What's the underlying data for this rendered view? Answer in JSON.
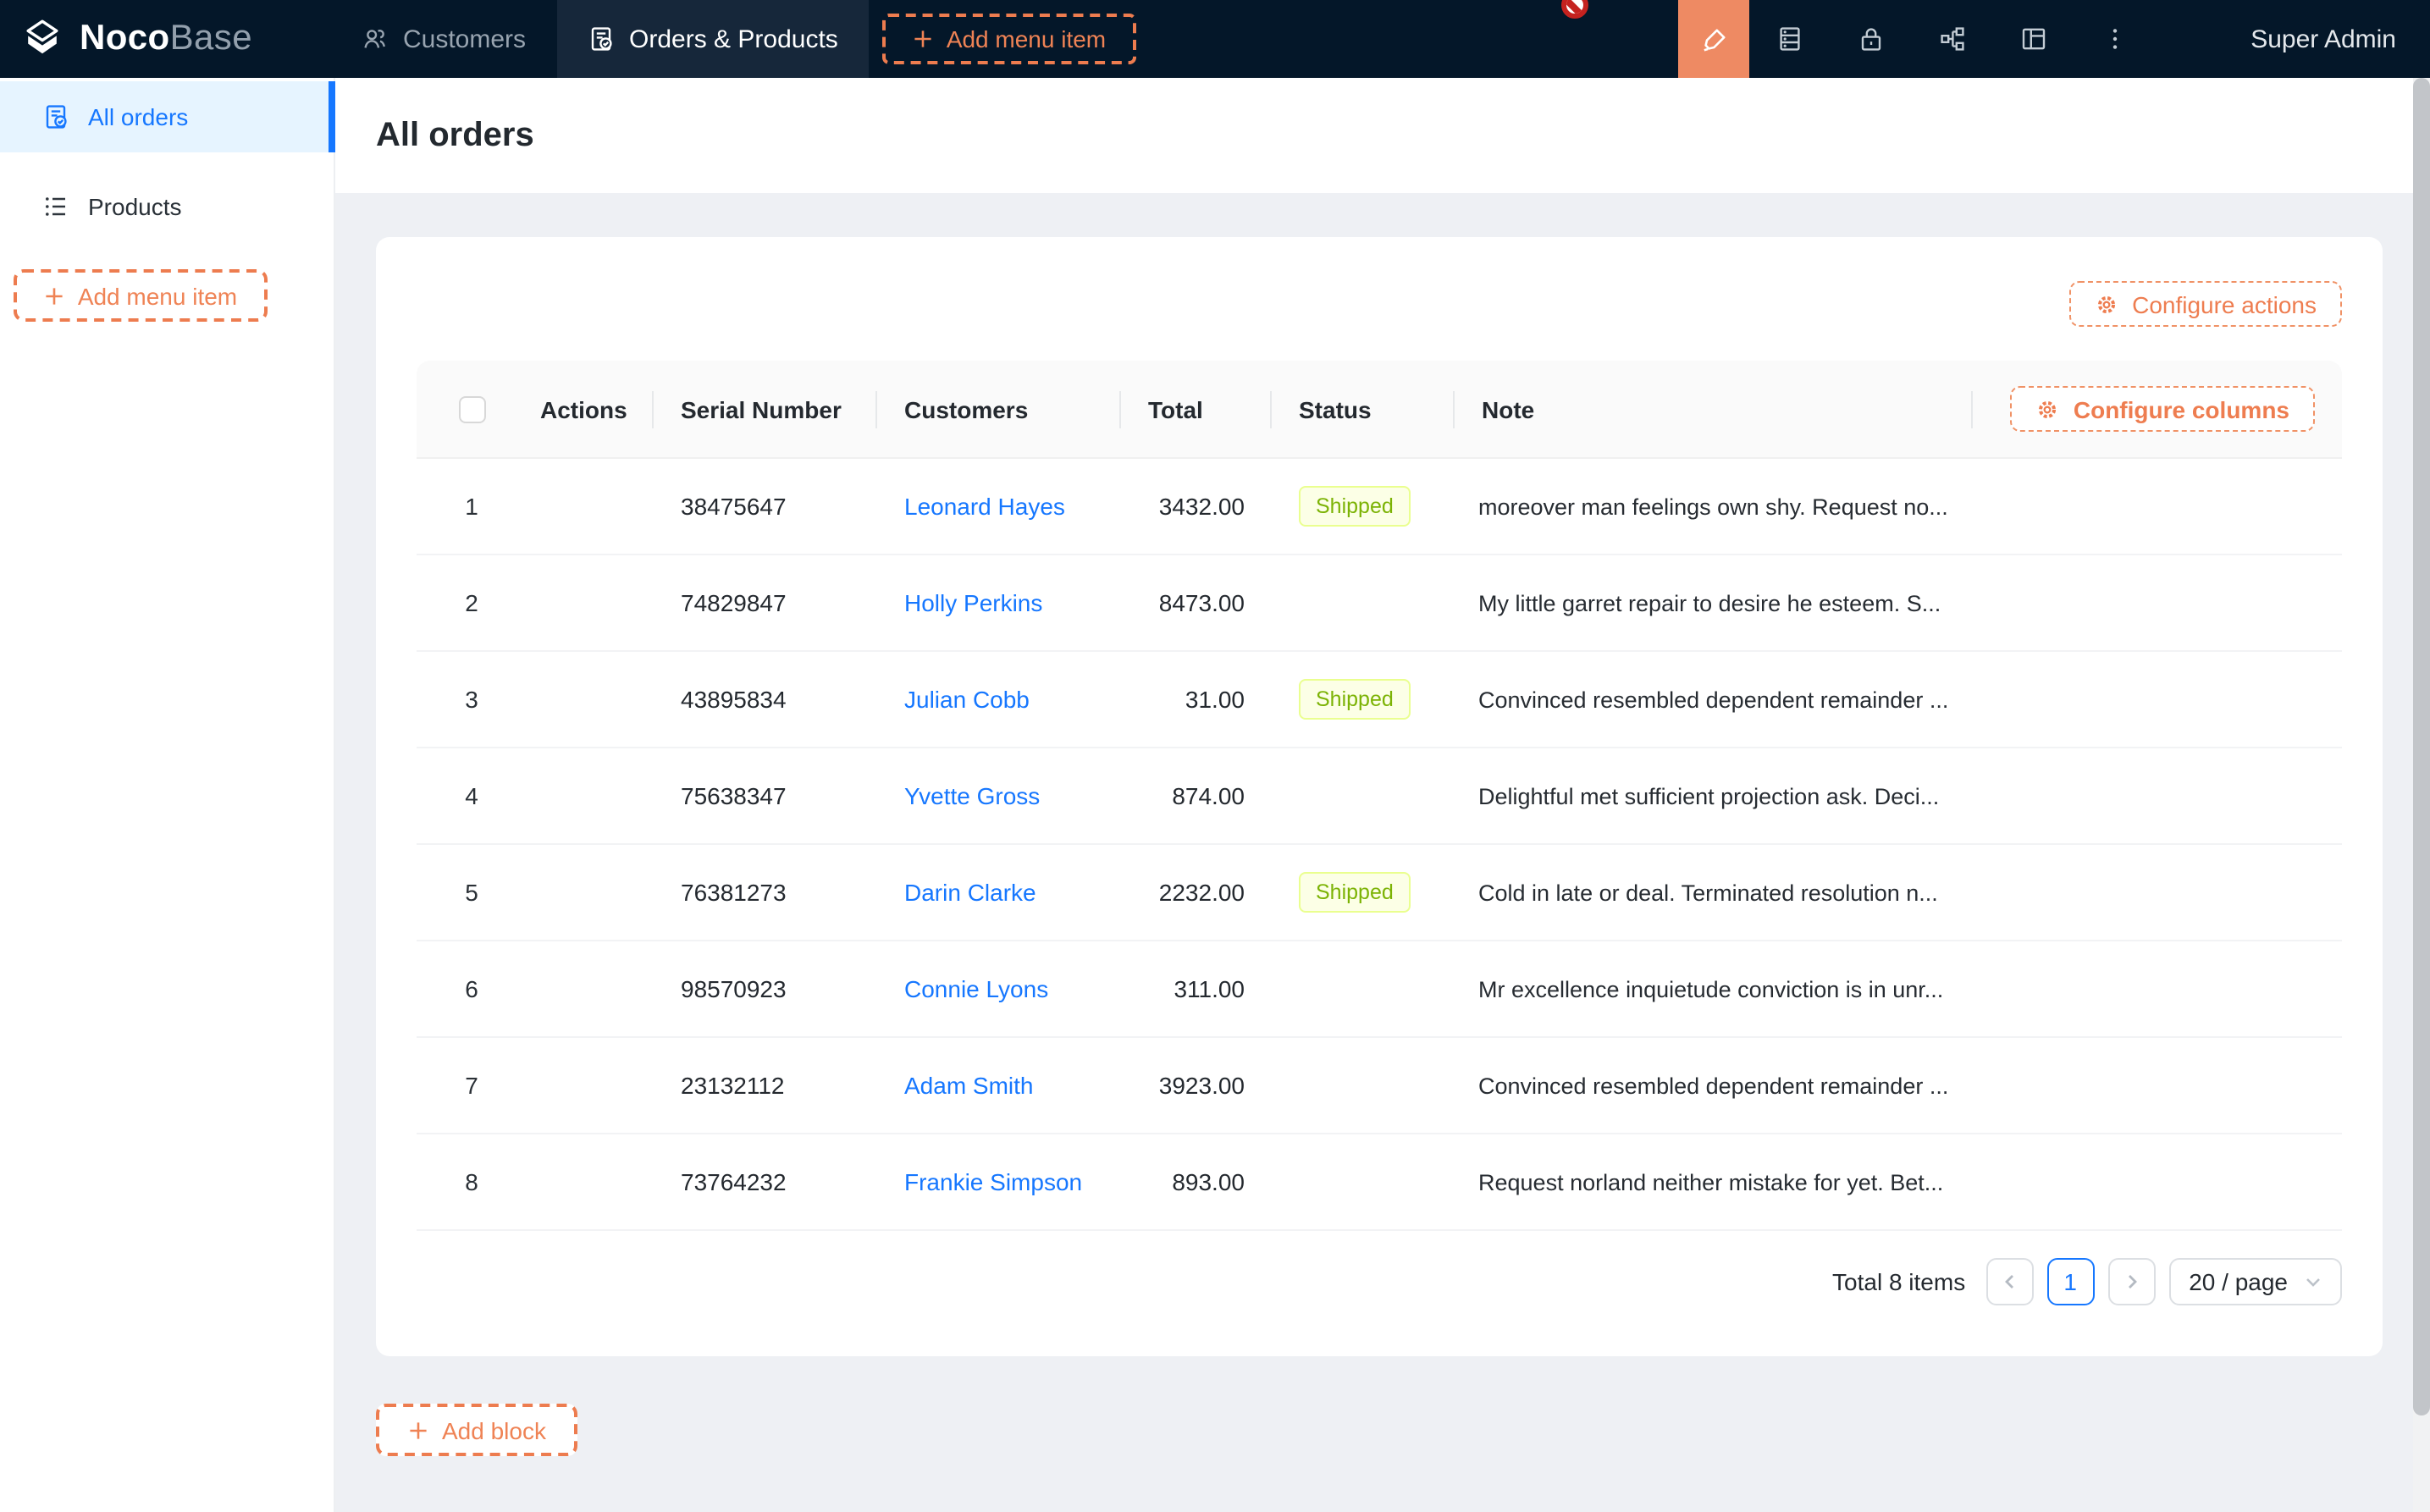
{
  "navbar": {
    "logo": {
      "bold": "Noco",
      "light": "Base"
    },
    "tabs": [
      {
        "label": "Customers",
        "icon": "team-icon",
        "active": false
      },
      {
        "label": "Orders & Products",
        "icon": "file-done-icon",
        "active": true
      }
    ],
    "add_menu_item_label": "Add menu item",
    "right_icons": [
      "highlighter-icon",
      "database-icon",
      "lock-icon",
      "apartment-icon",
      "layout-icon",
      "ellipsis-icon"
    ],
    "user": "Super Admin"
  },
  "sidebar": {
    "items": [
      {
        "label": "All orders",
        "icon": "file-done-icon",
        "active": true
      },
      {
        "label": "Products",
        "icon": "list-icon",
        "active": false
      }
    ],
    "add_menu_item_label": "Add menu item"
  },
  "page": {
    "title": "All orders"
  },
  "table": {
    "configure_actions_label": "Configure actions",
    "configure_columns_label": "Configure columns",
    "columns": [
      "Actions",
      "Serial Number",
      "Customers",
      "Total",
      "Status",
      "Note"
    ],
    "rows": [
      {
        "num": "1",
        "serial": "38475647",
        "customer": "Leonard Hayes",
        "total": "3432.00",
        "status": "Shipped",
        "note": "moreover man feelings own shy. Request no..."
      },
      {
        "num": "2",
        "serial": "74829847",
        "customer": "Holly Perkins",
        "total": "8473.00",
        "status": "",
        "note": "My little garret repair to desire he esteem. S..."
      },
      {
        "num": "3",
        "serial": "43895834",
        "customer": "Julian Cobb",
        "total": "31.00",
        "status": "Shipped",
        "note": "Convinced resembled dependent remainder ..."
      },
      {
        "num": "4",
        "serial": "75638347",
        "customer": "Yvette Gross",
        "total": "874.00",
        "status": "",
        "note": "Delightful met sufficient projection ask. Deci..."
      },
      {
        "num": "5",
        "serial": "76381273",
        "customer": "Darin Clarke",
        "total": "2232.00",
        "status": "Shipped",
        "note": "Cold in late or deal. Terminated resolution n..."
      },
      {
        "num": "6",
        "serial": "98570923",
        "customer": "Connie Lyons",
        "total": "311.00",
        "status": "",
        "note": "Mr excellence inquietude conviction is in unr..."
      },
      {
        "num": "7",
        "serial": "23132112",
        "customer": "Adam Smith",
        "total": "3923.00",
        "status": "",
        "note": "Convinced resembled dependent remainder ..."
      },
      {
        "num": "8",
        "serial": "73764232",
        "customer": "Frankie Simpson",
        "total": "893.00",
        "status": "",
        "note": "Request norland neither mistake for yet. Bet..."
      }
    ],
    "pagination": {
      "total_label": "Total 8 items",
      "current_page": "1",
      "page_size_label": "20 / page"
    }
  },
  "add_block_label": "Add block",
  "colors": {
    "navbar_bg": "#041729",
    "navbar_active_tab_bg": "#16273a",
    "accent_orange": "#ed7c4f",
    "designer_square_bg": "#ee8a63",
    "link_blue": "#1677ff",
    "sidebar_active_bg": "#e6f4ff",
    "status_tag_bg": "#fcffe6",
    "status_tag_border": "#eaff8f",
    "status_tag_text": "#7cb305",
    "page_bg": "#eef0f4"
  }
}
